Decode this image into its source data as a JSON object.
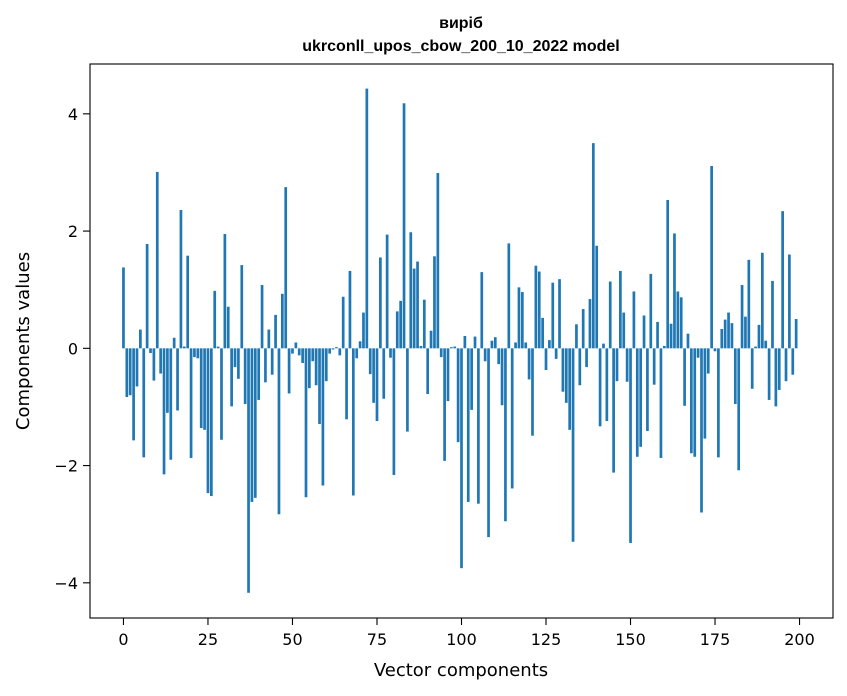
{
  "chart_data": {
    "type": "bar",
    "title": "виріб",
    "subtitle": "ukrconll_upos_cbow_200_10_2022 model",
    "xlabel": "Vector components",
    "ylabel": "Components values",
    "xlim": [
      -9.9,
      209.9
    ],
    "ylim": [
      -4.6,
      4.85
    ],
    "xticks": [
      0,
      25,
      50,
      75,
      100,
      125,
      150,
      175,
      200
    ],
    "yticks": [
      -4,
      -2,
      0,
      2,
      4
    ],
    "xtick_labels": [
      "0",
      "25",
      "50",
      "75",
      "100",
      "125",
      "150",
      "175",
      "200"
    ],
    "ytick_labels": [
      "−4",
      "−2",
      "0",
      "2",
      "4"
    ],
    "grid": false,
    "bar_color": "#1f77b4",
    "x": [
      0,
      1,
      2,
      3,
      4,
      5,
      6,
      7,
      8,
      9,
      10,
      11,
      12,
      13,
      14,
      15,
      16,
      17,
      18,
      19,
      20,
      21,
      22,
      23,
      24,
      25,
      26,
      27,
      28,
      29,
      30,
      31,
      32,
      33,
      34,
      35,
      36,
      37,
      38,
      39,
      40,
      41,
      42,
      43,
      44,
      45,
      46,
      47,
      48,
      49,
      50,
      51,
      52,
      53,
      54,
      55,
      56,
      57,
      58,
      59,
      60,
      61,
      62,
      63,
      64,
      65,
      66,
      67,
      68,
      69,
      70,
      71,
      72,
      73,
      74,
      75,
      76,
      77,
      78,
      79,
      80,
      81,
      82,
      83,
      84,
      85,
      86,
      87,
      88,
      89,
      90,
      91,
      92,
      93,
      94,
      95,
      96,
      97,
      98,
      99,
      100,
      101,
      102,
      103,
      104,
      105,
      106,
      107,
      108,
      109,
      110,
      111,
      112,
      113,
      114,
      115,
      116,
      117,
      118,
      119,
      120,
      121,
      122,
      123,
      124,
      125,
      126,
      127,
      128,
      129,
      130,
      131,
      132,
      133,
      134,
      135,
      136,
      137,
      138,
      139,
      140,
      141,
      142,
      143,
      144,
      145,
      146,
      147,
      148,
      149,
      150,
      151,
      152,
      153,
      154,
      155,
      156,
      157,
      158,
      159,
      160,
      161,
      162,
      163,
      164,
      165,
      166,
      167,
      168,
      169,
      170,
      171,
      172,
      173,
      174,
      175,
      176,
      177,
      178,
      179,
      180,
      181,
      182,
      183,
      184,
      185,
      186,
      187,
      188,
      189,
      190,
      191,
      192,
      193,
      194,
      195,
      196,
      197,
      198,
      199
    ],
    "values": [
      1.38,
      -0.83,
      -0.8,
      -1.57,
      -0.65,
      0.32,
      -1.86,
      1.78,
      -0.08,
      -0.55,
      3.01,
      -0.43,
      -2.15,
      -1.1,
      -1.9,
      0.18,
      -1.06,
      2.36,
      0.03,
      1.58,
      -1.87,
      -0.15,
      -0.17,
      -1.36,
      -1.39,
      -2.47,
      -2.52,
      0.98,
      0.03,
      -1.56,
      1.95,
      0.71,
      -0.99,
      -0.32,
      -0.52,
      1.42,
      -0.95,
      -4.17,
      -2.62,
      -2.55,
      -0.88,
      1.08,
      -0.58,
      0.32,
      -0.45,
      0.57,
      -2.83,
      0.93,
      2.75,
      -0.77,
      -0.09,
      0.1,
      -0.12,
      -0.25,
      -2.54,
      -0.68,
      -0.22,
      -0.63,
      -1.29,
      -2.34,
      -0.56,
      -0.09,
      -0.02,
      0.02,
      -0.12,
      0.88,
      -1.21,
      1.32,
      -2.51,
      -0.17,
      0.12,
      0.61,
      4.43,
      -0.44,
      -0.93,
      -1.24,
      1.55,
      -0.86,
      1.94,
      -0.16,
      -2.16,
      0.63,
      0.81,
      4.18,
      -1.42,
      1.98,
      1.36,
      1.48,
      0.04,
      0.83,
      -0.78,
      0.3,
      1.57,
      2.99,
      -0.15,
      -1.92,
      -0.9,
      0.02,
      0.03,
      -1.6,
      -3.75,
      0.21,
      -2.62,
      -1.05,
      0.2,
      -2.65,
      1.3,
      -0.22,
      -3.22,
      0.13,
      0.19,
      -0.27,
      -0.97,
      -2.95,
      1.79,
      -2.39,
      0.1,
      1.04,
      0.96,
      0.1,
      -0.53,
      -1.49,
      1.41,
      1.31,
      0.52,
      -0.37,
      0.14,
      1.12,
      -0.18,
      1.18,
      -0.74,
      -0.93,
      -1.39,
      -3.3,
      0.41,
      -0.63,
      0.67,
      -0.32,
      0.84,
      3.5,
      1.75,
      -1.33,
      0.08,
      -1.24,
      1.14,
      -2.12,
      -0.56,
      1.32,
      0.61,
      -0.57,
      -3.32,
      0.97,
      -1.85,
      -1.68,
      0.56,
      -1.41,
      1.27,
      -0.62,
      0.45,
      -1.87,
      0.04,
      2.53,
      0.42,
      1.96,
      0.97,
      0.87,
      -0.98,
      0.25,
      -1.79,
      -1.85,
      -0.16,
      -2.8,
      -1.54,
      -0.43,
      3.11,
      -0.05,
      -1.86,
      0.33,
      0.49,
      0.61,
      0.43,
      -0.95,
      -2.08,
      1.08,
      0.54,
      1.51,
      -0.69,
      0.03,
      0.4,
      1.63,
      0.13,
      -0.88,
      1.15,
      -0.99,
      -0.71,
      2.34,
      -0.56,
      1.6,
      -0.45,
      0.5
    ]
  }
}
